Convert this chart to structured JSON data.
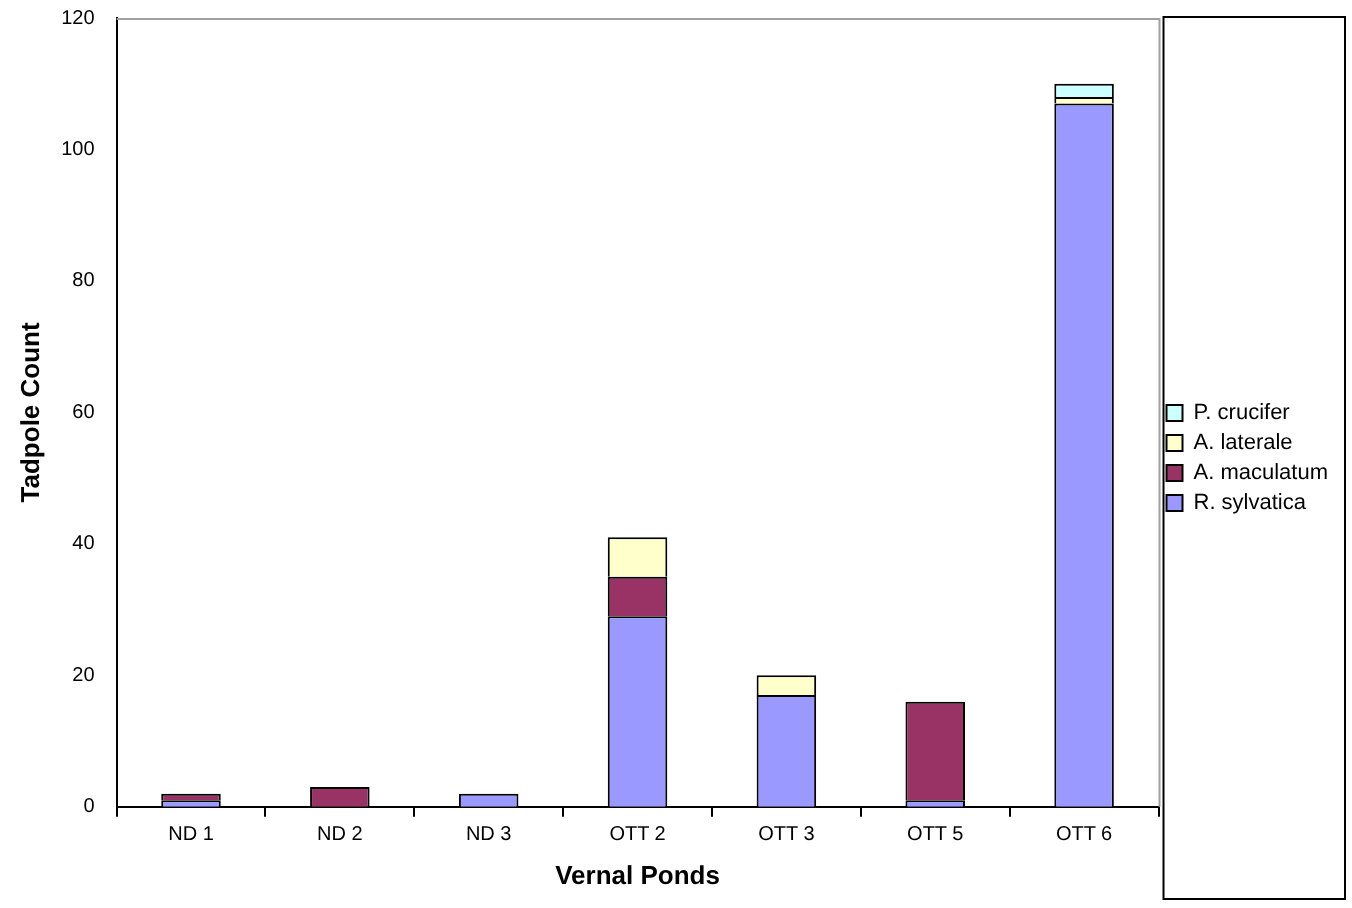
{
  "chart_data": {
    "type": "bar",
    "stacked": true,
    "xlabel": "Vernal Ponds",
    "ylabel": "Tadpole Count",
    "categories": [
      "ND 1",
      "ND 2",
      "ND 3",
      "OTT 2",
      "OTT 3",
      "OTT 5",
      "OTT 6"
    ],
    "series": [
      {
        "name": "R. sylvatica",
        "color": "#9999ff",
        "values": [
          1,
          0,
          2,
          29,
          17,
          1,
          107
        ]
      },
      {
        "name": "A. maculatum",
        "color": "#993366",
        "values": [
          1,
          3,
          0,
          6,
          0,
          15,
          0
        ]
      },
      {
        "name": "A. laterale",
        "color": "#ffffcc",
        "values": [
          0,
          0,
          0,
          6,
          3,
          0,
          1
        ]
      },
      {
        "name": "P. crucifer",
        "color": "#ccffff",
        "values": [
          0,
          0,
          0,
          0,
          0,
          0,
          2
        ]
      }
    ],
    "ylim": [
      0,
      120
    ],
    "yticks": [
      0,
      20,
      40,
      60,
      80,
      100,
      120
    ],
    "legend": "right"
  }
}
